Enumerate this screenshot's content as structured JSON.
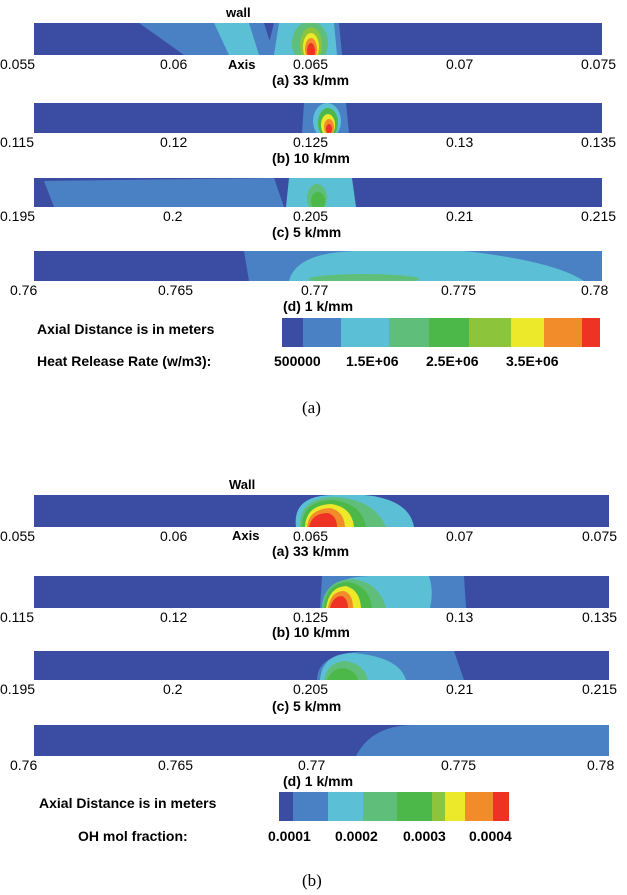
{
  "colors": {
    "base": "#3a4da2",
    "l1": "#4a80c4",
    "l2": "#5bc0d6",
    "l3": "#5fbe7a",
    "l4": "#4db84a",
    "l5": "#8cc43c",
    "l6": "#ece82a",
    "l7": "#f28c2a",
    "l8": "#ee3224"
  },
  "figure_a": {
    "label": "(a)",
    "wall_label": "wall",
    "axis_label": "Axis",
    "panels": [
      {
        "caption": "(a) 33 k/mm",
        "ticks": [
          "0.055",
          "0.06",
          "0.065",
          "0.07",
          "0.075"
        ]
      },
      {
        "caption": "(b) 10 k/mm",
        "ticks": [
          "0.115",
          "0.12",
          "0.125",
          "0.13",
          "0.135"
        ]
      },
      {
        "caption": "(c) 5 k/mm",
        "ticks": [
          "0.195",
          "0.2",
          "0.205",
          "0.21",
          "0.215"
        ]
      },
      {
        "caption": "(d) 1 k/mm",
        "ticks": [
          "0.76",
          "0.765",
          "0.77",
          "0.775",
          "0.78"
        ]
      }
    ],
    "distance_note": "Axial Distance is in meters",
    "legend_title": "Heat Release Rate (w/m3):",
    "legend_values": [
      "500000",
      "1.5E+06",
      "2.5E+06",
      "3.5E+06"
    ]
  },
  "figure_b": {
    "label": "(b)",
    "wall_label": "Wall",
    "axis_label": "Axis",
    "panels": [
      {
        "caption": "(a) 33 k/mm",
        "ticks": [
          "0.055",
          "0.06",
          "0.065",
          "0.07",
          "0.075"
        ]
      },
      {
        "caption": "(b) 10 k/mm",
        "ticks": [
          "0.115",
          "0.12",
          "0.125",
          "0.13",
          "0.135"
        ]
      },
      {
        "caption": "(c) 5 k/mm",
        "ticks": [
          "0.195",
          "0.2",
          "0.205",
          "0.21",
          "0.215"
        ]
      },
      {
        "caption": "(d) 1 k/mm",
        "ticks": [
          "0.76",
          "0.765",
          "0.77",
          "0.775",
          "0.78"
        ]
      }
    ],
    "distance_note": "Axial Distance is in meters",
    "legend_title": "OH mol fraction:",
    "legend_values": [
      "0.0001",
      "0.0002",
      "0.0003",
      "0.0004"
    ]
  }
}
